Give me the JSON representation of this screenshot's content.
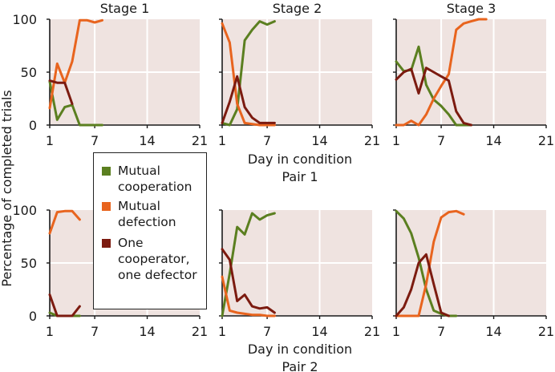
{
  "y_axis_label": "Percentage of completed trials",
  "x_axis_label": "Day in condition",
  "colors": {
    "panel_bg": "#efe3e0",
    "grid": "#ffffff",
    "cooperation": "#5b7f20",
    "defection": "#e8641e",
    "one_each": "#7c1b10"
  },
  "legend": {
    "items": [
      {
        "label": "Mutual cooperation",
        "color": "#5b7f20"
      },
      {
        "label": "Mutual defection",
        "color": "#e8641e"
      },
      {
        "label": "One cooperator, one defector",
        "color": "#7c1b10"
      }
    ]
  },
  "chart_data": {
    "type": "line",
    "xlabel": "Day in condition",
    "ylabel": "Percentage of completed trials",
    "xlim": [
      1,
      21
    ],
    "ylim": [
      0,
      100
    ],
    "x_ticks": [
      1,
      7,
      14,
      21
    ],
    "y_ticks": [
      0,
      50,
      100
    ],
    "grid": true,
    "columns": [
      "Stage 1",
      "Stage 2",
      "Stage 3"
    ],
    "rows": [
      "Pair 1",
      "Pair 2"
    ],
    "panels": [
      {
        "stage": "Stage 1",
        "pair": "Pair 1",
        "series": [
          {
            "name": "Mutual cooperation",
            "x": [
              1,
              2,
              3,
              4,
              5,
              6,
              7,
              8
            ],
            "y": [
              41,
              5,
              17,
              19,
              0,
              0,
              0,
              0
            ]
          },
          {
            "name": "Mutual defection",
            "x": [
              1,
              2,
              3,
              4,
              5,
              6,
              7,
              8
            ],
            "y": [
              16,
              58,
              40,
              60,
              99,
              99,
              97,
              99
            ]
          },
          {
            "name": "One cooperator, one defector",
            "x": [
              1,
              2,
              3,
              4
            ],
            "y": [
              42,
              40,
              40,
              20
            ]
          }
        ]
      },
      {
        "stage": "Stage 2",
        "pair": "Pair 1",
        "series": [
          {
            "name": "Mutual cooperation",
            "x": [
              1,
              2,
              3,
              4,
              5,
              6,
              7,
              8
            ],
            "y": [
              2,
              0,
              15,
              80,
              90,
              98,
              95,
              98
            ]
          },
          {
            "name": "Mutual defection",
            "x": [
              1,
              2,
              3,
              4,
              5,
              6,
              7,
              8
            ],
            "y": [
              96,
              78,
              20,
              2,
              1,
              0,
              0,
              0
            ]
          },
          {
            "name": "One cooperator, one defector",
            "x": [
              1,
              2,
              3,
              4,
              5,
              6,
              7,
              8
            ],
            "y": [
              2,
              22,
              46,
              17,
              7,
              2,
              2,
              2
            ]
          }
        ]
      },
      {
        "stage": "Stage 3",
        "pair": "Pair 1",
        "series": [
          {
            "name": "Mutual cooperation",
            "x": [
              1,
              2,
              3,
              4,
              5,
              6,
              7,
              8,
              9,
              10,
              11
            ],
            "y": [
              60,
              51,
              52,
              74,
              38,
              24,
              18,
              10,
              0,
              0,
              0
            ]
          },
          {
            "name": "Mutual defection",
            "x": [
              1,
              2,
              3,
              4,
              5,
              6,
              7,
              8,
              9,
              10,
              11,
              12,
              13
            ],
            "y": [
              0,
              0,
              4,
              0,
              10,
              25,
              37,
              48,
              90,
              96,
              98,
              100,
              100
            ]
          },
          {
            "name": "One cooperator, one defector",
            "x": [
              1,
              2,
              3,
              4,
              5,
              6,
              7,
              8,
              9,
              10,
              11
            ],
            "y": [
              43,
              50,
              53,
              30,
              54,
              50,
              46,
              42,
              13,
              2,
              0
            ]
          }
        ]
      },
      {
        "stage": "Stage 1",
        "pair": "Pair 2",
        "series": [
          {
            "name": "Mutual cooperation",
            "x": [
              1,
              2,
              3,
              4,
              5
            ],
            "y": [
              3,
              0,
              0,
              0,
              0
            ]
          },
          {
            "name": "Mutual defection",
            "x": [
              1,
              2,
              3,
              4,
              5
            ],
            "y": [
              78,
              98,
              99,
              99,
              91
            ]
          },
          {
            "name": "One cooperator, one defector",
            "x": [
              1,
              2,
              3,
              4,
              5
            ],
            "y": [
              20,
              0,
              0,
              0,
              9
            ]
          }
        ]
      },
      {
        "stage": "Stage 2",
        "pair": "Pair 2",
        "series": [
          {
            "name": "Mutual cooperation",
            "x": [
              1,
              2,
              3,
              4,
              5,
              6,
              7,
              8
            ],
            "y": [
              0,
              40,
              84,
              77,
              97,
              91,
              95,
              97
            ]
          },
          {
            "name": "Mutual defection",
            "x": [
              1,
              2,
              3,
              4,
              5,
              6,
              7,
              8
            ],
            "y": [
              37,
              5,
              3,
              2,
              1,
              1,
              0,
              0
            ]
          },
          {
            "name": "One cooperator, one defector",
            "x": [
              1,
              2,
              3,
              4,
              5,
              6,
              7,
              8
            ],
            "y": [
              63,
              53,
              14,
              20,
              9,
              7,
              8,
              3
            ]
          }
        ]
      },
      {
        "stage": "Stage 3",
        "pair": "Pair 2",
        "series": [
          {
            "name": "Mutual cooperation",
            "x": [
              1,
              2,
              3,
              4,
              5,
              6,
              7,
              8,
              9
            ],
            "y": [
              99,
              92,
              78,
              55,
              25,
              5,
              2,
              0,
              0
            ]
          },
          {
            "name": "Mutual defection",
            "x": [
              1,
              2,
              3,
              4,
              5,
              6,
              7,
              8,
              9,
              10
            ],
            "y": [
              0,
              0,
              0,
              0,
              30,
              70,
              93,
              98,
              99,
              96
            ]
          },
          {
            "name": "One cooperator, one defector",
            "x": [
              1,
              2,
              3,
              4,
              5,
              6,
              7,
              8
            ],
            "y": [
              0,
              8,
              25,
              50,
              58,
              30,
              3,
              0
            ]
          }
        ]
      }
    ]
  }
}
